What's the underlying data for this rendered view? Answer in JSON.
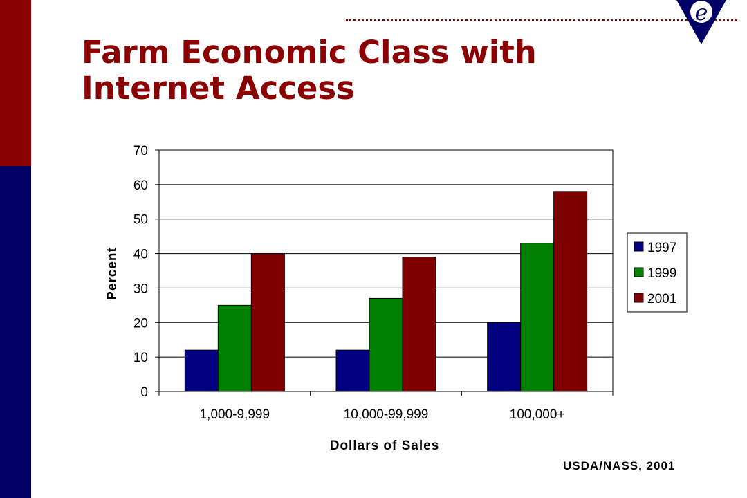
{
  "slide": {
    "title_line1": "Farm Economic Class with",
    "title_line2": "Internet Access",
    "source": "USDA/NASS, 2001",
    "logo_letter": "e"
  },
  "colors": {
    "accent_red": "#8b0000",
    "accent_navy": "#000066",
    "series": [
      "#000080",
      "#008000",
      "#800000"
    ]
  },
  "chart_data": {
    "type": "bar",
    "title": "",
    "xlabel": "Dollars of Sales",
    "ylabel": "Percent",
    "categories": [
      "1,000-9,999",
      "10,000-99,999",
      "100,000+"
    ],
    "series": [
      {
        "name": "1997",
        "values": [
          12,
          12,
          20
        ]
      },
      {
        "name": "1999",
        "values": [
          25,
          27,
          43
        ]
      },
      {
        "name": "2001",
        "values": [
          40,
          39,
          58
        ]
      }
    ],
    "ylim": [
      0,
      70
    ],
    "yticks": [
      0,
      10,
      20,
      30,
      40,
      50,
      60,
      70
    ],
    "grid": true,
    "legend": "right"
  }
}
